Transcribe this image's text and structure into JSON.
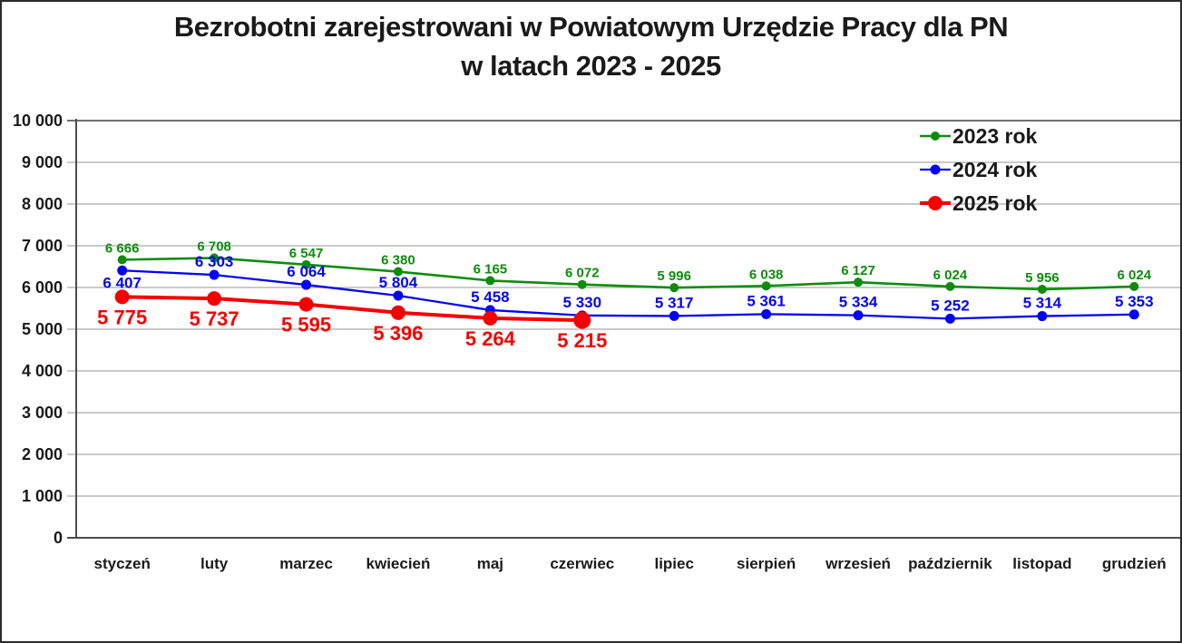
{
  "title": {
    "line1": "Bezrobotni zarejestrowani w Powiatowym Urzędzie Pracy dla PN",
    "line2": "w latach 2023 - 2025"
  },
  "colors": {
    "series_2023": "#0d8c0d",
    "series_2024": "#0404f0",
    "series_2025": "#f50000",
    "gridline": "#ababab",
    "gridline_top": "#707070",
    "axis": "#4d4d4d",
    "text": "#1a1a1a",
    "background": "#ffffff",
    "border": "#2b2b2b"
  },
  "chart_data": {
    "type": "line",
    "title": "Bezrobotni zarejestrowani w Powiatowym Urzędzie Pracy dla PN w latach 2023 - 2025",
    "categories": [
      "styczeń",
      "luty",
      "marzec",
      "kwiecień",
      "maj",
      "czerwiec",
      "lipiec",
      "sierpień",
      "wrzesień",
      "październik",
      "listopad",
      "grudzień"
    ],
    "series": [
      {
        "name": "2023 rok",
        "color_key": "series_2023",
        "values": [
          6666,
          6708,
          6547,
          6380,
          6165,
          6072,
          5996,
          6038,
          6127,
          6024,
          5956,
          6024
        ],
        "labels_position": "above"
      },
      {
        "name": "2024 rok",
        "color_key": "series_2024",
        "values": [
          6407,
          6303,
          6064,
          5804,
          5458,
          5330,
          5317,
          5361,
          5334,
          5252,
          5314,
          5353
        ],
        "labels_position": "above",
        "label_position_overrides": {
          "0": "below"
        }
      },
      {
        "name": "2025 rok",
        "color_key": "series_2025",
        "values": [
          5775,
          5737,
          5595,
          5396,
          5264,
          5215
        ],
        "labels_position": "below"
      }
    ],
    "xlabel": "",
    "ylabel": "",
    "ylim": [
      0,
      10000
    ],
    "yticks": [
      0,
      1000,
      2000,
      3000,
      4000,
      5000,
      6000,
      7000,
      8000,
      9000,
      10000
    ],
    "grid": true,
    "legend_position": "top-right",
    "legend": [
      "2023 rok",
      "2024 rok",
      "2025 rok"
    ],
    "number_format": "space-thousands"
  }
}
